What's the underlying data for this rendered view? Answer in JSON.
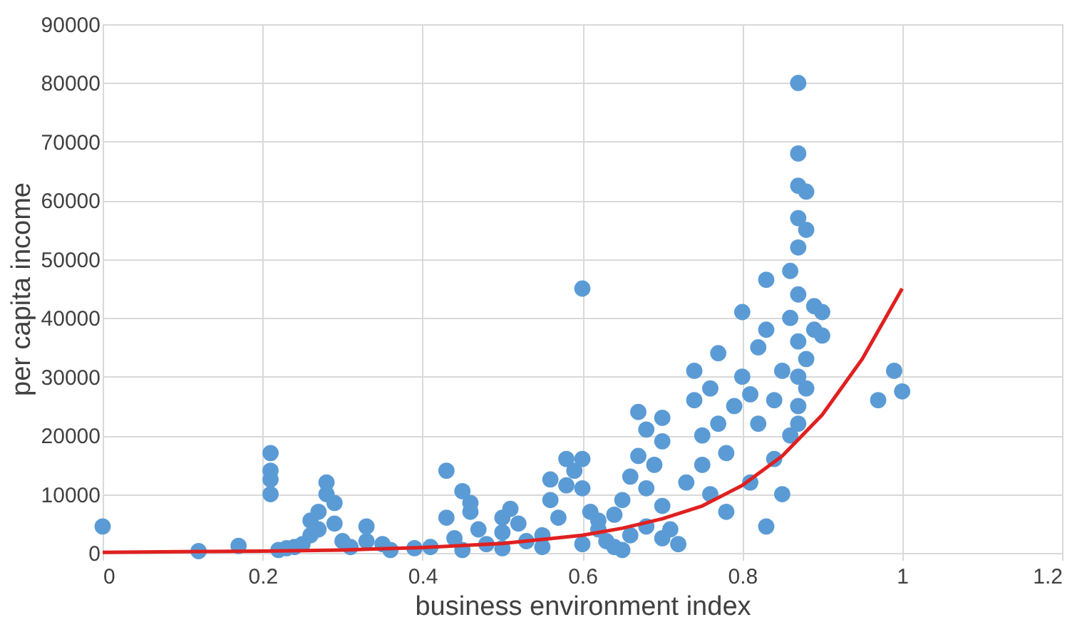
{
  "chart_data": {
    "type": "scatter",
    "xlabel": "business environment index",
    "ylabel": "per capita income",
    "xlim": [
      0,
      1.2
    ],
    "xticks": [
      0,
      0.2,
      0.4,
      0.6,
      0.8,
      1,
      1.2
    ],
    "ylim": [
      0,
      90000
    ],
    "yticks": [
      0,
      10000,
      20000,
      30000,
      40000,
      50000,
      60000,
      70000,
      80000,
      90000
    ],
    "grid": true,
    "marker": "circle",
    "series": [
      {
        "color": "#5b9bd5",
        "x": [
          0,
          0.12,
          0.17,
          0.21,
          0.21,
          0.21,
          0.21,
          0.22,
          0.23,
          0.24,
          0.25,
          0.26,
          0.26,
          0.27,
          0.27,
          0.28,
          0.28,
          0.29,
          0.29,
          0.3,
          0.31,
          0.33,
          0.33,
          0.35,
          0.36,
          0.39,
          0.41,
          0.43,
          0.43,
          0.44,
          0.45,
          0.46,
          0.46,
          0.47,
          0.48,
          0.5,
          0.5,
          0.51,
          0.52,
          0.53,
          0.55,
          0.56,
          0.56,
          0.57,
          0.58,
          0.58,
          0.59,
          0.6,
          0.6,
          0.6,
          0.61,
          0.62,
          0.63,
          0.64,
          0.65,
          0.66,
          0.66,
          0.67,
          0.67,
          0.68,
          0.68,
          0.69,
          0.7,
          0.7,
          0.7,
          0.71,
          0.72,
          0.73,
          0.74,
          0.74,
          0.75,
          0.75,
          0.76,
          0.76,
          0.77,
          0.77,
          0.78,
          0.78,
          0.79,
          0.8,
          0.8,
          0.81,
          0.81,
          0.82,
          0.82,
          0.83,
          0.83,
          0.83,
          0.84,
          0.84,
          0.85,
          0.85,
          0.86,
          0.86,
          0.86,
          0.87,
          0.87,
          0.87,
          0.87,
          0.87,
          0.87,
          0.87,
          0.87,
          0.87,
          0.87,
          0.88,
          0.88,
          0.88,
          0.88,
          0.89,
          0.89,
          0.9,
          0.9,
          0.97,
          0.99,
          1.0,
          0.45,
          0.5,
          0.55,
          0.6,
          0.65,
          0.7,
          0.62,
          0.68,
          0.64
        ],
        "values": [
          4500,
          300,
          1200,
          17000,
          14000,
          12500,
          10000,
          500,
          800,
          1000,
          1500,
          3000,
          5500,
          7000,
          4000,
          12000,
          10000,
          8500,
          5000,
          2000,
          1000,
          4500,
          2000,
          1500,
          500,
          800,
          1000,
          6000,
          14000,
          2500,
          10500,
          8500,
          7000,
          4000,
          1500,
          3500,
          6000,
          7500,
          5000,
          2000,
          3000,
          12500,
          9000,
          6000,
          16000,
          11500,
          14000,
          45000,
          16000,
          11000,
          7000,
          4000,
          2000,
          6500,
          9000,
          3000,
          13000,
          24000,
          16500,
          11000,
          21000,
          15000,
          8000,
          19000,
          23000,
          4000,
          1500,
          12000,
          26000,
          31000,
          20000,
          15000,
          10000,
          28000,
          34000,
          22000,
          17000,
          7000,
          25000,
          41000,
          30000,
          27000,
          12000,
          35000,
          22000,
          46500,
          38000,
          4500,
          26000,
          16000,
          31000,
          10000,
          48000,
          40000,
          20000,
          80000,
          68000,
          62500,
          57000,
          52000,
          44000,
          36000,
          30000,
          25000,
          22000,
          61500,
          55000,
          33000,
          28000,
          38000,
          42000,
          41000,
          37000,
          26000,
          31000,
          27500,
          500,
          800,
          1000,
          1500,
          500,
          2500,
          5500,
          4500,
          1000
        ]
      },
      {
        "type": "line",
        "color": "#e02020",
        "marker": "none",
        "x": [
          0,
          0.1,
          0.2,
          0.3,
          0.4,
          0.5,
          0.6,
          0.65,
          0.7,
          0.75,
          0.8,
          0.85,
          0.9,
          0.95,
          1.0
        ],
        "values": [
          100,
          200,
          300,
          500,
          900,
          1600,
          3000,
          4200,
          5800,
          8000,
          11500,
          16500,
          23500,
          33000,
          45000
        ]
      }
    ]
  }
}
